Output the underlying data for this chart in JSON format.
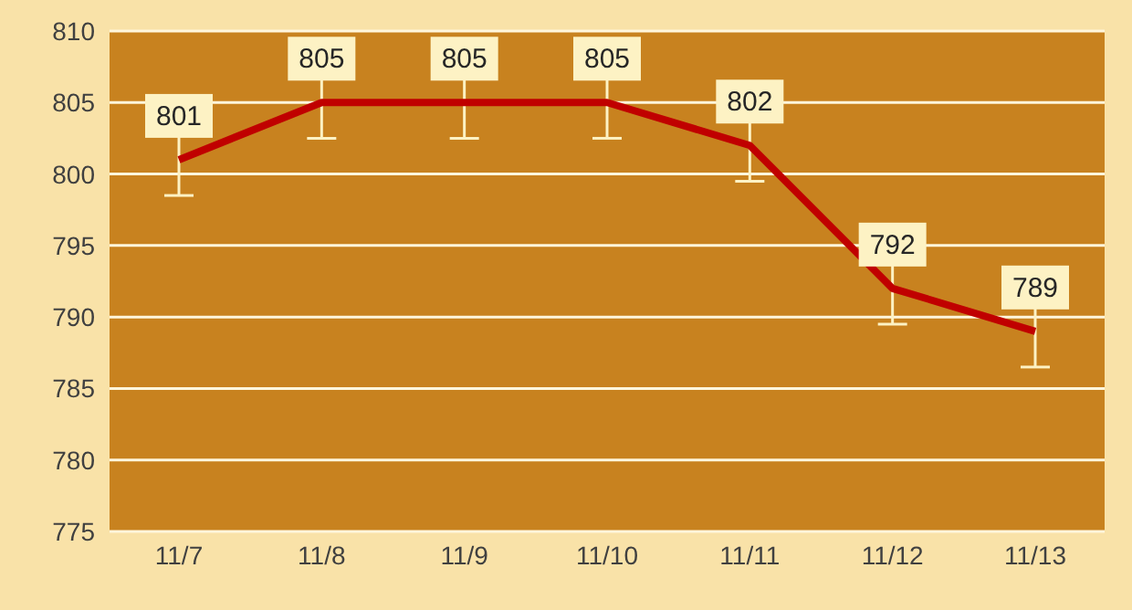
{
  "chart_data": {
    "type": "line",
    "categories": [
      "11/7",
      "11/8",
      "11/9",
      "11/10",
      "11/11",
      "11/12",
      "11/13"
    ],
    "series": [
      {
        "color": "#c00000",
        "values": [
          801,
          805,
          805,
          805,
          802,
          792,
          789
        ],
        "errors": [
          2.5,
          2.5,
          2.5,
          2.5,
          2.5,
          2.5,
          2.5
        ]
      }
    ],
    "ylim": [
      775,
      810
    ],
    "yticks": [
      775,
      780,
      785,
      790,
      795,
      800,
      805,
      810
    ],
    "grid": "y",
    "data_labels": true,
    "marker": "none",
    "line_style": "solid",
    "legend": false
  }
}
